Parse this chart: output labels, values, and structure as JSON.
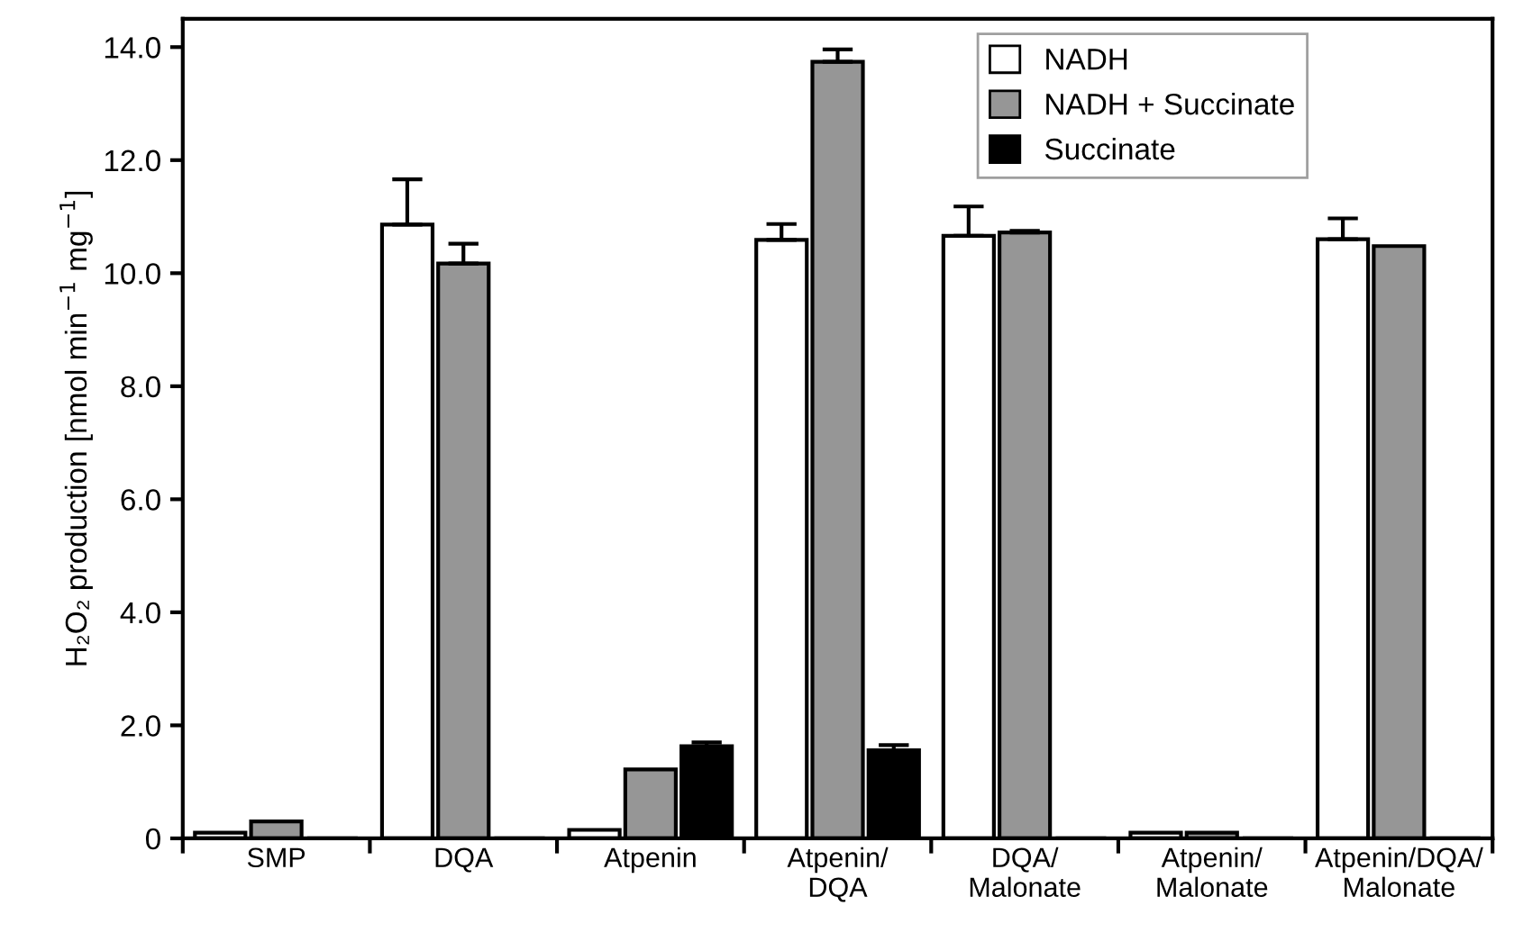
{
  "chart_data": {
    "type": "bar",
    "categories": [
      "SMP",
      "DQA",
      "Atpenin",
      "Atpenin/\nDQA",
      "DQA/\nMalonate",
      "Atpenin/\nMalonate",
      "Atpenin/DQA/\nMalonate"
    ],
    "series": [
      {
        "name": "NADH",
        "color": "#ffffff",
        "values": [
          0.1,
          10.86,
          0.15,
          10.59,
          10.66,
          0.1,
          10.6
        ],
        "errors": [
          null,
          0.8,
          null,
          0.28,
          0.52,
          null,
          0.37
        ]
      },
      {
        "name": "NADH + Succinate",
        "color": "#969696",
        "values": [
          0.3,
          10.17,
          1.22,
          13.74,
          10.72,
          0.1,
          10.48
        ],
        "errors": [
          null,
          0.35,
          null,
          0.22,
          0.03,
          null,
          null
        ]
      },
      {
        "name": "Succinate",
        "color": "#000000",
        "values": [
          0,
          0,
          1.63,
          1.56,
          0,
          0,
          0
        ],
        "errors": [
          null,
          null,
          0.07,
          0.09,
          null,
          null,
          null
        ]
      }
    ],
    "ylabel": "H₂O₂ production [nmol min$^{−1}$ mg$^{−1}$]",
    "ylim": [
      0,
      14.5
    ],
    "yticks": [
      0,
      {
        "value": 2,
        "label": "2.0"
      },
      {
        "value": 4,
        "label": "4.0"
      },
      {
        "value": 6,
        "label": "6.0"
      },
      {
        "value": 8,
        "label": "8.0"
      },
      {
        "value": 10,
        "label": "10.0"
      },
      {
        "value": 12,
        "label": "12.0"
      },
      {
        "value": 14,
        "label": "14.0"
      }
    ],
    "grid": false,
    "legend": "top right"
  }
}
